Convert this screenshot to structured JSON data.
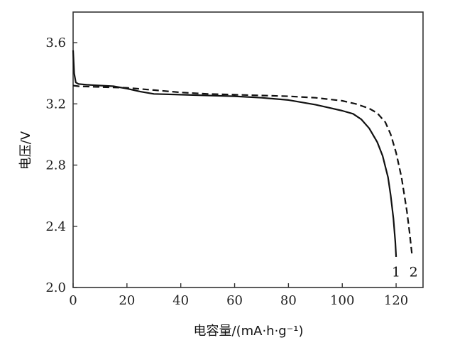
{
  "chart_data": {
    "type": "line",
    "xlabel": "电容量/(mA·h·g⁻¹)",
    "ylabel": "电压/V",
    "xlim": [
      0,
      130
    ],
    "ylim": [
      2.0,
      3.8
    ],
    "x_ticks": [
      0,
      20,
      40,
      60,
      80,
      100,
      120
    ],
    "y_ticks": [
      2.0,
      2.4,
      2.8,
      3.2,
      3.6
    ],
    "y_tick_labels": [
      "2.0",
      "2.4",
      "2.8",
      "3.2",
      "3.6"
    ],
    "grid": false,
    "series": [
      {
        "name": "1",
        "style": "solid",
        "color": "#111111",
        "points": [
          [
            0,
            3.55
          ],
          [
            0.4,
            3.4
          ],
          [
            1,
            3.34
          ],
          [
            2,
            3.33
          ],
          [
            5,
            3.325
          ],
          [
            10,
            3.32
          ],
          [
            15,
            3.315
          ],
          [
            20,
            3.3
          ],
          [
            25,
            3.28
          ],
          [
            30,
            3.265
          ],
          [
            40,
            3.26
          ],
          [
            50,
            3.255
          ],
          [
            60,
            3.25
          ],
          [
            70,
            3.24
          ],
          [
            80,
            3.225
          ],
          [
            90,
            3.195
          ],
          [
            95,
            3.175
          ],
          [
            100,
            3.155
          ],
          [
            104,
            3.135
          ],
          [
            107,
            3.1
          ],
          [
            110,
            3.04
          ],
          [
            113,
            2.95
          ],
          [
            115,
            2.86
          ],
          [
            117,
            2.72
          ],
          [
            118,
            2.6
          ],
          [
            119,
            2.45
          ],
          [
            119.7,
            2.3
          ],
          [
            120,
            2.2
          ]
        ]
      },
      {
        "name": "2",
        "style": "dashed",
        "color": "#111111",
        "points": [
          [
            0,
            3.32
          ],
          [
            2,
            3.315
          ],
          [
            10,
            3.31
          ],
          [
            20,
            3.305
          ],
          [
            30,
            3.29
          ],
          [
            40,
            3.275
          ],
          [
            50,
            3.265
          ],
          [
            60,
            3.26
          ],
          [
            70,
            3.255
          ],
          [
            80,
            3.25
          ],
          [
            90,
            3.24
          ],
          [
            100,
            3.22
          ],
          [
            105,
            3.2
          ],
          [
            110,
            3.17
          ],
          [
            113,
            3.14
          ],
          [
            116,
            3.08
          ],
          [
            118,
            3.0
          ],
          [
            120,
            2.88
          ],
          [
            122,
            2.72
          ],
          [
            124,
            2.5
          ],
          [
            125,
            2.36
          ],
          [
            126,
            2.2
          ]
        ]
      }
    ],
    "annotations": [
      {
        "text": "1",
        "x": 120,
        "y": 2.1
      },
      {
        "text": "2",
        "x": 126.5,
        "y": 2.1
      }
    ]
  }
}
